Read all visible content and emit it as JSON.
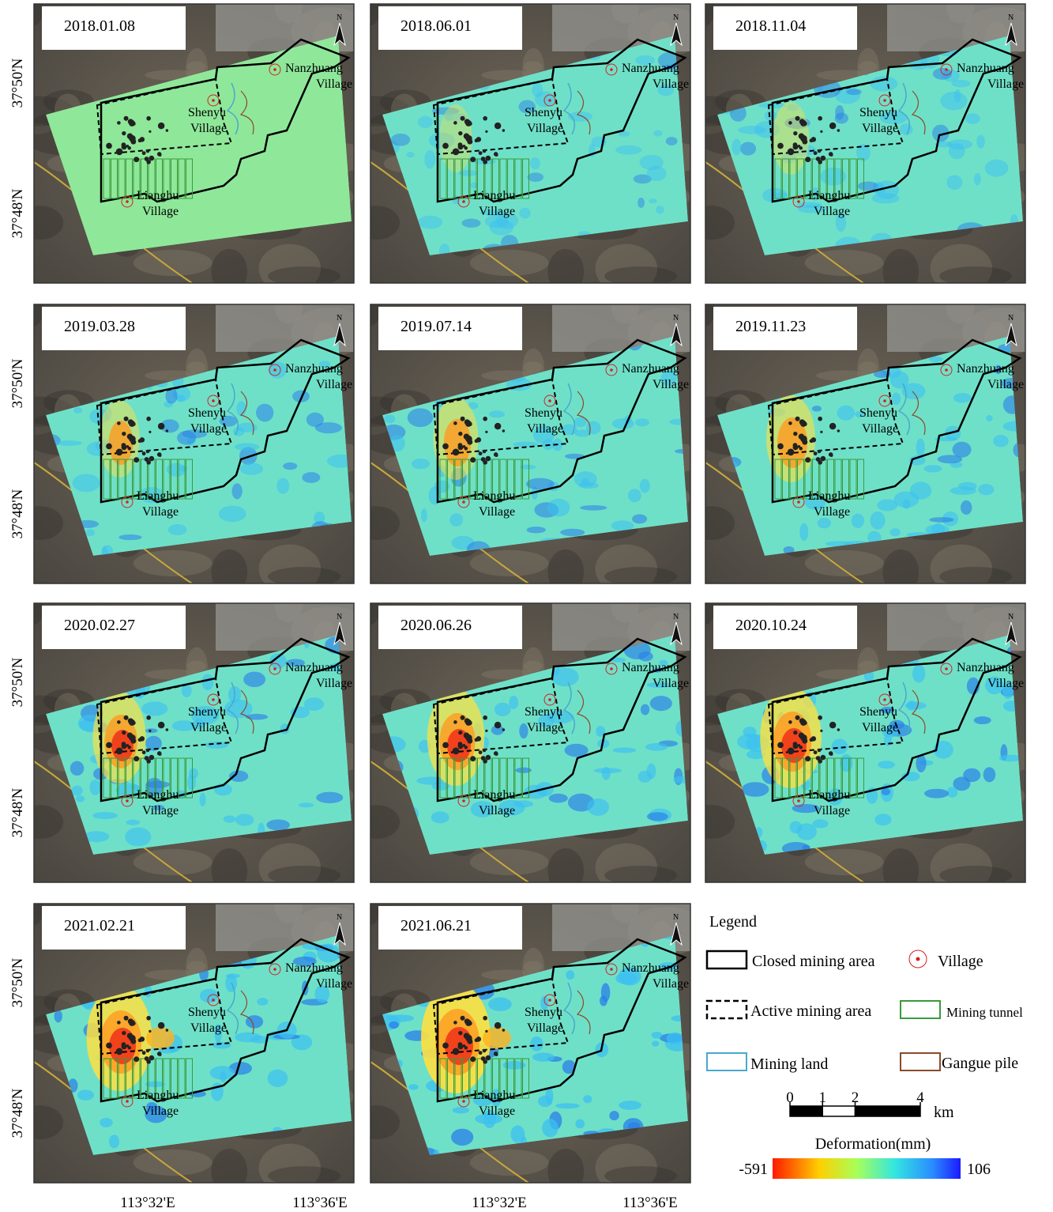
{
  "panels": [
    {
      "date": "2018.01.08"
    },
    {
      "date": "2018.06.01"
    },
    {
      "date": "2018.11.04"
    },
    {
      "date": "2019.03.28"
    },
    {
      "date": "2019.07.14"
    },
    {
      "date": "2019.11.23"
    },
    {
      "date": "2020.02.27"
    },
    {
      "date": "2020.06.26"
    },
    {
      "date": "2020.10.24"
    },
    {
      "date": "2021.02.21"
    },
    {
      "date": "2021.06.21"
    }
  ],
  "map_labels": {
    "north": "N",
    "villages": [
      [
        "Nanzhuang",
        "Village"
      ],
      [
        "Shenyu",
        "Village"
      ],
      [
        "Lianghu",
        "Village"
      ]
    ]
  },
  "axes": {
    "latitude": [
      "37°50'N",
      "37°48'N"
    ],
    "longitude": [
      "113°32'E",
      "113°36'E"
    ]
  },
  "legend": {
    "title": "Legend",
    "items": [
      {
        "label": "Closed mining area",
        "color": "#000000"
      },
      {
        "label": "Village",
        "color": "#d42020"
      },
      {
        "label": "Active mining area",
        "color": "#000000"
      },
      {
        "label": "Mining tunnel",
        "color": "#3a9a3a"
      },
      {
        "label": "Mining land",
        "color": "#4aa8cc"
      },
      {
        "label": "Gangue pile",
        "color": "#8b4a2a"
      }
    ]
  },
  "scale_bar": {
    "ticks": [
      0,
      1,
      2,
      4
    ],
    "unit": "km"
  },
  "colorbar": {
    "title": "Deformation(mm)",
    "min": -591,
    "max": 106
  }
}
